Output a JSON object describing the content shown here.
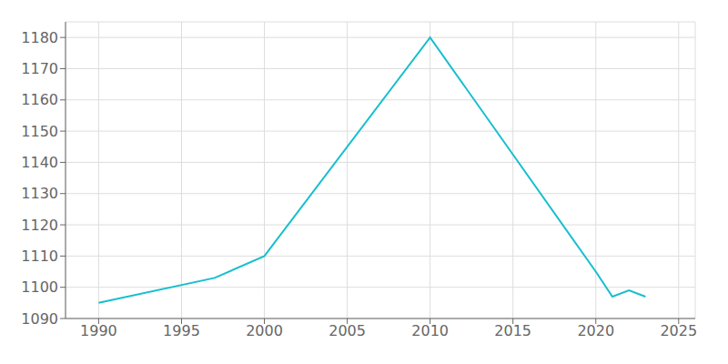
{
  "chart_data": {
    "type": "line",
    "x": [
      1990,
      1997,
      2000,
      2010,
      2020,
      2021,
      2022,
      2023
    ],
    "values": [
      1095,
      1103,
      1110,
      1180,
      1105,
      1097,
      1099,
      1097
    ],
    "color": "#17becf",
    "xlim": [
      1988,
      2026
    ],
    "ylim": [
      1090,
      1185
    ],
    "xticks": [
      1990,
      1995,
      2000,
      2005,
      2010,
      2015,
      2020,
      2025
    ],
    "yticks": [
      1090,
      1100,
      1110,
      1120,
      1130,
      1140,
      1150,
      1160,
      1170,
      1180
    ],
    "grid": true
  }
}
